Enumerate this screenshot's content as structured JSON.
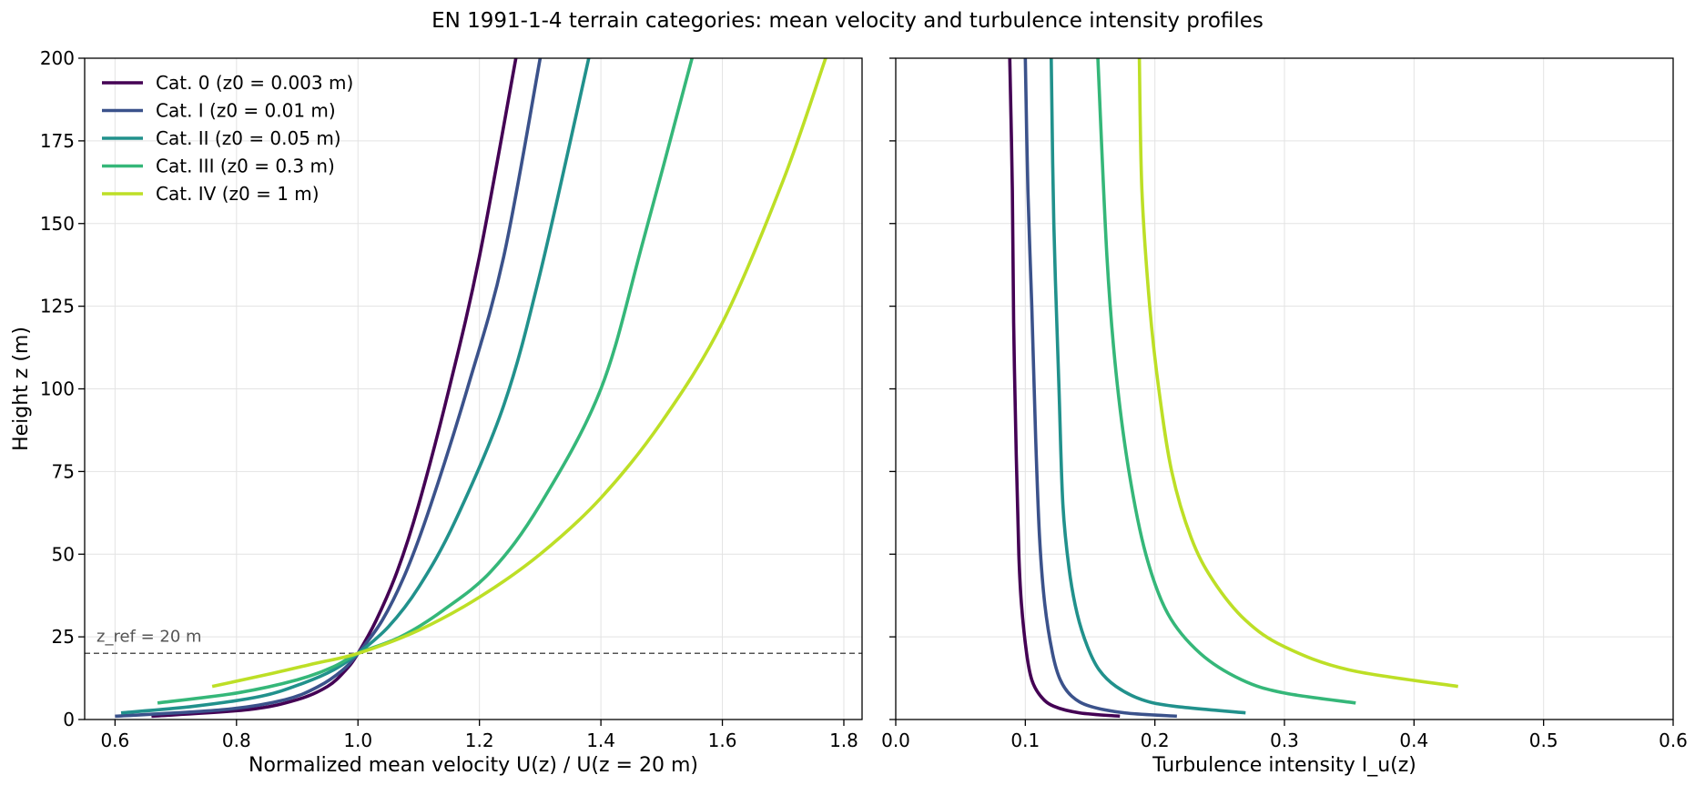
{
  "figure": {
    "title": "EN 1991-1-4 terrain categories: mean velocity and turbulence intensity profiles"
  },
  "chart_data": [
    {
      "type": "line",
      "panel": "left",
      "xlabel": "Normalized mean velocity  U(z) / U(z = 20 m)",
      "ylabel": "Height z (m)",
      "xlim": [
        0.55,
        1.83
      ],
      "ylim": [
        0,
        200
      ],
      "xticks": [
        "0.6",
        "0.8",
        "1.0",
        "1.2",
        "1.4",
        "1.6",
        "1.8"
      ],
      "xtick_values": [
        0.6,
        0.8,
        1.0,
        1.2,
        1.4,
        1.6,
        1.8
      ],
      "yticks": [
        "0",
        "25",
        "50",
        "75",
        "100",
        "125",
        "150",
        "175",
        "200"
      ],
      "ytick_values": [
        0,
        25,
        50,
        75,
        100,
        125,
        150,
        175,
        200
      ],
      "grid": true,
      "legend_position": "upper-left",
      "reference_line": {
        "y": 20,
        "label": "z_ref = 20 m",
        "style": "dashed"
      },
      "series": [
        {
          "name": "Cat. 0 (z0 = 0.003 m)",
          "color": "#440154",
          "points": [
            [
              0.66,
              1
            ],
            [
              0.82,
              3
            ],
            [
              0.9,
              6
            ],
            [
              0.95,
              10
            ],
            [
              0.98,
              15
            ],
            [
              1.0,
              20
            ],
            [
              1.03,
              30
            ],
            [
              1.065,
              45
            ],
            [
              1.1,
              65
            ],
            [
              1.15,
              100
            ],
            [
              1.2,
              140
            ],
            [
              1.26,
              200
            ]
          ]
        },
        {
          "name": "Cat. I (z0 = 0.01 m)",
          "color": "#3b528b",
          "points": [
            [
              0.6,
              1
            ],
            [
              0.78,
              3
            ],
            [
              0.88,
              6
            ],
            [
              0.935,
              10
            ],
            [
              0.975,
              15
            ],
            [
              1.0,
              20
            ],
            [
              1.04,
              30
            ],
            [
              1.08,
              45
            ],
            [
              1.12,
              65
            ],
            [
              1.18,
              100
            ],
            [
              1.24,
              140
            ],
            [
              1.3,
              200
            ]
          ]
        },
        {
          "name": "Cat. II (z0 = 0.05 m)",
          "color": "#21918c",
          "points": [
            [
              0.61,
              2
            ],
            [
              0.73,
              4
            ],
            [
              0.84,
              7
            ],
            [
              0.91,
              11
            ],
            [
              0.96,
              15
            ],
            [
              1.0,
              20
            ],
            [
              1.05,
              28
            ],
            [
              1.1,
              40
            ],
            [
              1.16,
              60
            ],
            [
              1.24,
              95
            ],
            [
              1.3,
              135
            ],
            [
              1.38,
              200
            ]
          ]
        },
        {
          "name": "Cat. III (z0 = 0.3 m)",
          "color": "#35b779",
          "points": [
            [
              0.67,
              5
            ],
            [
              0.8,
              8
            ],
            [
              0.9,
              12
            ],
            [
              0.96,
              16
            ],
            [
              1.0,
              20
            ],
            [
              1.07,
              25
            ],
            [
              1.14,
              33
            ],
            [
              1.22,
              45
            ],
            [
              1.3,
              65
            ],
            [
              1.4,
              100
            ],
            [
              1.47,
              145
            ],
            [
              1.55,
              200
            ]
          ]
        },
        {
          "name": "Cat. IV (z0 = 1 m)",
          "color": "#bddf26",
          "points": [
            [
              0.76,
              10
            ],
            [
              0.86,
              14
            ],
            [
              0.93,
              17
            ],
            [
              1.0,
              20
            ],
            [
              1.1,
              27
            ],
            [
              1.2,
              37
            ],
            [
              1.3,
              50
            ],
            [
              1.4,
              67
            ],
            [
              1.5,
              90
            ],
            [
              1.6,
              120
            ],
            [
              1.7,
              163
            ],
            [
              1.77,
              200
            ]
          ]
        }
      ]
    },
    {
      "type": "line",
      "panel": "right",
      "xlabel": "Turbulence intensity  I_u(z)",
      "ylabel": "",
      "xlim": [
        0.0,
        0.6
      ],
      "ylim": [
        0,
        200
      ],
      "xticks": [
        "0.0",
        "0.1",
        "0.2",
        "0.3",
        "0.4",
        "0.5",
        "0.6"
      ],
      "xtick_values": [
        0.0,
        0.1,
        0.2,
        0.3,
        0.4,
        0.5,
        0.6
      ],
      "yticks": [
        "",
        "",
        "",
        "",
        "",
        "",
        "",
        "",
        ""
      ],
      "ytick_values": [
        0,
        25,
        50,
        75,
        100,
        125,
        150,
        175,
        200
      ],
      "grid": true,
      "series": [
        {
          "name": "Cat. 0 (z0 = 0.003 m)",
          "color": "#440154",
          "points": [
            [
              0.173,
              1
            ],
            [
              0.142,
              2
            ],
            [
              0.122,
              4
            ],
            [
              0.112,
              7
            ],
            [
              0.105,
              12
            ],
            [
              0.101,
              20
            ],
            [
              0.097,
              35
            ],
            [
              0.095,
              50
            ],
            [
              0.093,
              80
            ],
            [
              0.091,
              120
            ],
            [
              0.09,
              160
            ],
            [
              0.088,
              200
            ]
          ]
        },
        {
          "name": "Cat. I (z0 = 0.01 m)",
          "color": "#3b528b",
          "points": [
            [
              0.217,
              1
            ],
            [
              0.177,
              2
            ],
            [
              0.15,
              4
            ],
            [
              0.136,
              7
            ],
            [
              0.127,
              12
            ],
            [
              0.121,
              20
            ],
            [
              0.115,
              35
            ],
            [
              0.111,
              55
            ],
            [
              0.108,
              85
            ],
            [
              0.105,
              125
            ],
            [
              0.102,
              160
            ],
            [
              0.1,
              200
            ]
          ]
        },
        {
          "name": "Cat. II (z0 = 0.05 m)",
          "color": "#21918c",
          "points": [
            [
              0.27,
              2
            ],
            [
              0.215,
              4
            ],
            [
              0.19,
              6
            ],
            [
              0.17,
              10
            ],
            [
              0.157,
              15
            ],
            [
              0.148,
              22
            ],
            [
              0.14,
              32
            ],
            [
              0.134,
              45
            ],
            [
              0.129,
              65
            ],
            [
              0.126,
              100
            ],
            [
              0.122,
              150
            ],
            [
              0.12,
              200
            ]
          ]
        },
        {
          "name": "Cat. III (z0 = 0.3 m)",
          "color": "#35b779",
          "points": [
            [
              0.355,
              5
            ],
            [
              0.3,
              8
            ],
            [
              0.267,
              12
            ],
            [
              0.235,
              20
            ],
            [
              0.21,
              32
            ],
            [
              0.193,
              50
            ],
            [
              0.18,
              75
            ],
            [
              0.17,
              105
            ],
            [
              0.163,
              140
            ],
            [
              0.156,
              200
            ]
          ]
        },
        {
          "name": "Cat. IV (z0 = 1 m)",
          "color": "#bddf26",
          "points": [
            [
              0.434,
              10
            ],
            [
              0.35,
              15
            ],
            [
              0.3,
              22
            ],
            [
              0.27,
              30
            ],
            [
              0.245,
              42
            ],
            [
              0.228,
              55
            ],
            [
              0.213,
              75
            ],
            [
              0.203,
              100
            ],
            [
              0.196,
              125
            ],
            [
              0.19,
              160
            ],
            [
              0.188,
              200
            ]
          ]
        }
      ]
    }
  ]
}
